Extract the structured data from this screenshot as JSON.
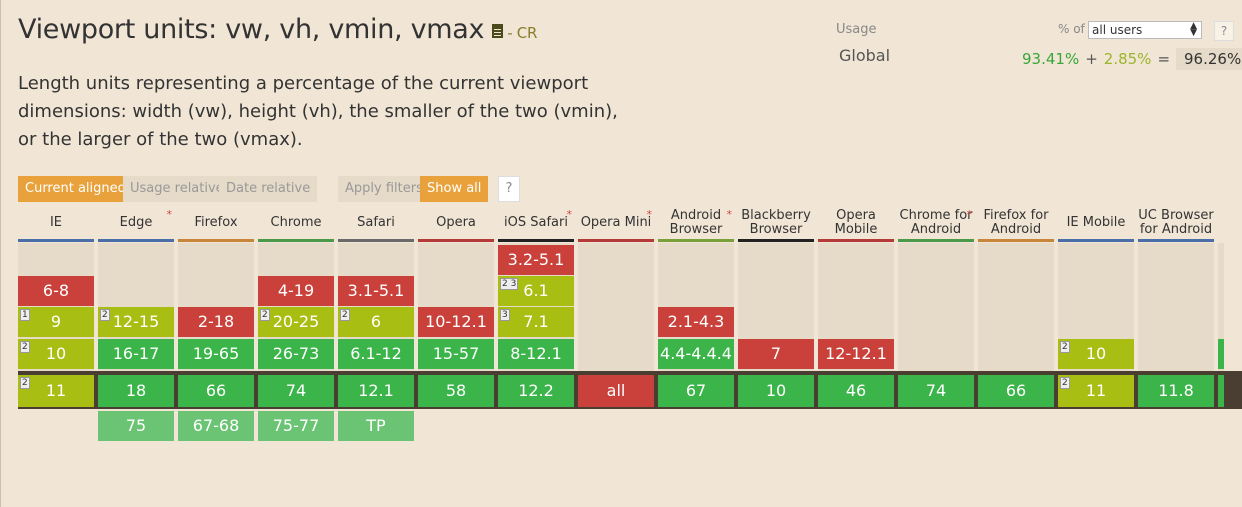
{
  "feature": {
    "title": "Viewport units: vw, vh, vmin, vmax",
    "status": "- CR",
    "description": "Length units representing a percentage of the current viewport dimensions: width (vw), height (vh), the smaller of the two (vmin), or the larger of the two (vmax)."
  },
  "usage": {
    "label": "Usage",
    "percent_of": "% of",
    "select_value": "all users",
    "help": "?",
    "region": "Global",
    "full": "93.41%",
    "plus": "+",
    "partial": "2.85%",
    "equals": "=",
    "total": "96.26%"
  },
  "filters": {
    "current_aligned": "Current aligned",
    "usage_relative": "Usage relative",
    "date_relative": "Date relative",
    "apply_filters": "Apply filters",
    "show_all": "Show all",
    "help": "?"
  },
  "browsers": [
    {
      "name": "IE",
      "asterisk": false
    },
    {
      "name": "Edge",
      "asterisk": true
    },
    {
      "name": "Firefox",
      "asterisk": false
    },
    {
      "name": "Chrome",
      "asterisk": false
    },
    {
      "name": "Safari",
      "asterisk": false
    },
    {
      "name": "Opera",
      "asterisk": false
    },
    {
      "name": "iOS Safari",
      "asterisk": true
    },
    {
      "name": "Opera Mini",
      "asterisk": true
    },
    {
      "name": "Android Browser",
      "asterisk": true
    },
    {
      "name": "Blackberry Browser",
      "asterisk": false
    },
    {
      "name": "Opera Mobile",
      "asterisk": false
    },
    {
      "name": "Chrome for Android",
      "asterisk": true
    },
    {
      "name": "Firefox for Android",
      "asterisk": false
    },
    {
      "name": "IE Mobile",
      "asterisk": false
    },
    {
      "name": "UC Browser for Android",
      "asterisk": false
    }
  ],
  "colors": {
    "supported": "#3bb44a",
    "partial": "#a8be13",
    "unsupported": "#c9413a",
    "future": "#6ac473",
    "accent": "#e9a23b"
  },
  "cells": [
    {
      "col": 6,
      "row": 0,
      "label": "3.2-5.1",
      "status": "r",
      "note": ""
    },
    {
      "col": 0,
      "row": 1,
      "label": "6-8",
      "status": "r",
      "note": ""
    },
    {
      "col": 3,
      "row": 1,
      "label": "4-19",
      "status": "r",
      "note": ""
    },
    {
      "col": 4,
      "row": 1,
      "label": "3.1-5.1",
      "status": "r",
      "note": ""
    },
    {
      "col": 6,
      "row": 1,
      "label": "6.1",
      "status": "p",
      "note": "2 3"
    },
    {
      "col": 0,
      "row": 2,
      "label": "9",
      "status": "p",
      "note": "1"
    },
    {
      "col": 1,
      "row": 2,
      "label": "12-15",
      "status": "p",
      "note": "2"
    },
    {
      "col": 2,
      "row": 2,
      "label": "2-18",
      "status": "r",
      "note": ""
    },
    {
      "col": 3,
      "row": 2,
      "label": "20-25",
      "status": "p",
      "note": "2"
    },
    {
      "col": 4,
      "row": 2,
      "label": "6",
      "status": "p",
      "note": "2"
    },
    {
      "col": 5,
      "row": 2,
      "label": "10-12.1",
      "status": "r",
      "note": ""
    },
    {
      "col": 6,
      "row": 2,
      "label": "7.1",
      "status": "p",
      "note": "3"
    },
    {
      "col": 8,
      "row": 2,
      "label": "2.1-4.3",
      "status": "r",
      "note": ""
    },
    {
      "col": 0,
      "row": 3,
      "label": "10",
      "status": "p",
      "note": "2"
    },
    {
      "col": 1,
      "row": 3,
      "label": "16-17",
      "status": "y",
      "note": ""
    },
    {
      "col": 2,
      "row": 3,
      "label": "19-65",
      "status": "y",
      "note": ""
    },
    {
      "col": 3,
      "row": 3,
      "label": "26-73",
      "status": "y",
      "note": ""
    },
    {
      "col": 4,
      "row": 3,
      "label": "6.1-12",
      "status": "y",
      "note": ""
    },
    {
      "col": 5,
      "row": 3,
      "label": "15-57",
      "status": "y",
      "note": ""
    },
    {
      "col": 6,
      "row": 3,
      "label": "8-12.1",
      "status": "y",
      "note": ""
    },
    {
      "col": 8,
      "row": 3,
      "label": "4.4-4.4.4",
      "status": "y",
      "note": ""
    },
    {
      "col": 9,
      "row": 3,
      "label": "7",
      "status": "r",
      "note": ""
    },
    {
      "col": 10,
      "row": 3,
      "label": "12-12.1",
      "status": "r",
      "note": ""
    },
    {
      "col": 13,
      "row": 3,
      "label": "10",
      "status": "p",
      "note": "2"
    },
    {
      "col": 0,
      "row": 4,
      "label": "11",
      "status": "p",
      "note": "2"
    },
    {
      "col": 1,
      "row": 4,
      "label": "18",
      "status": "y",
      "note": ""
    },
    {
      "col": 2,
      "row": 4,
      "label": "66",
      "status": "y",
      "note": ""
    },
    {
      "col": 3,
      "row": 4,
      "label": "74",
      "status": "y",
      "note": ""
    },
    {
      "col": 4,
      "row": 4,
      "label": "12.1",
      "status": "y",
      "note": ""
    },
    {
      "col": 5,
      "row": 4,
      "label": "58",
      "status": "y",
      "note": ""
    },
    {
      "col": 6,
      "row": 4,
      "label": "12.2",
      "status": "y",
      "note": ""
    },
    {
      "col": 7,
      "row": 4,
      "label": "all",
      "status": "r",
      "note": ""
    },
    {
      "col": 8,
      "row": 4,
      "label": "67",
      "status": "y",
      "note": ""
    },
    {
      "col": 9,
      "row": 4,
      "label": "10",
      "status": "y",
      "note": ""
    },
    {
      "col": 10,
      "row": 4,
      "label": "46",
      "status": "y",
      "note": ""
    },
    {
      "col": 11,
      "row": 4,
      "label": "74",
      "status": "y",
      "note": ""
    },
    {
      "col": 12,
      "row": 4,
      "label": "66",
      "status": "y",
      "note": ""
    },
    {
      "col": 13,
      "row": 4,
      "label": "11",
      "status": "p",
      "note": "2"
    },
    {
      "col": 14,
      "row": 4,
      "label": "11.8",
      "status": "y",
      "note": ""
    },
    {
      "col": 1,
      "row": 5,
      "label": "75",
      "status": "f",
      "note": ""
    },
    {
      "col": 2,
      "row": 5,
      "label": "67-68",
      "status": "f",
      "note": ""
    },
    {
      "col": 3,
      "row": 5,
      "label": "75-77",
      "status": "f",
      "note": ""
    },
    {
      "col": 4,
      "row": 5,
      "label": "TP",
      "status": "f",
      "note": ""
    }
  ]
}
